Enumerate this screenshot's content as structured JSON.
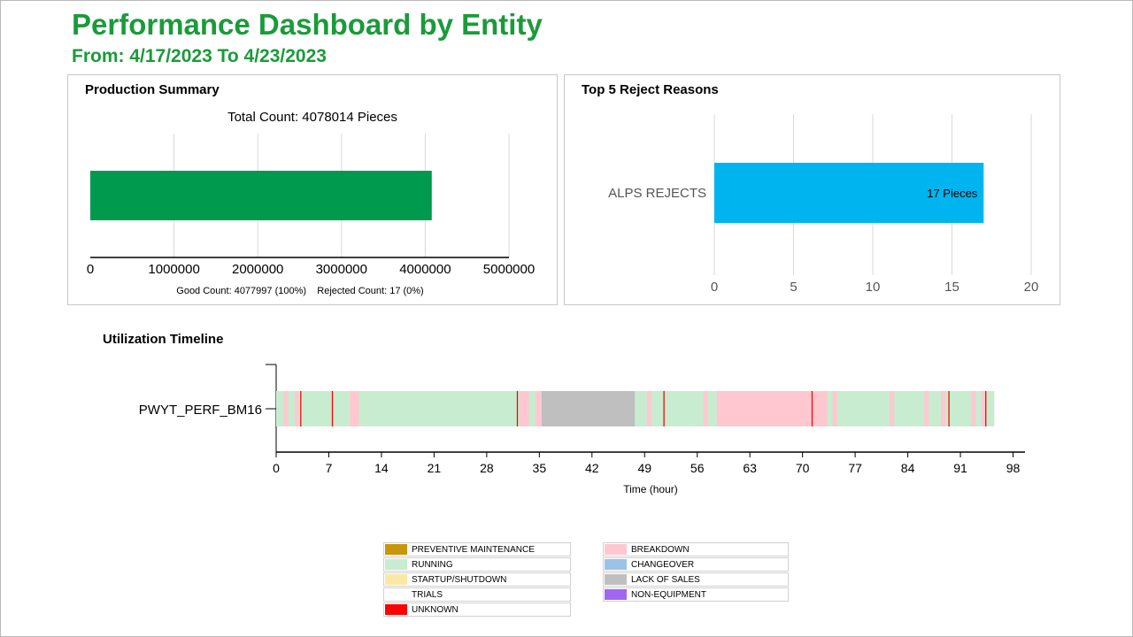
{
  "header": {
    "title": "Performance Dashboard by Entity",
    "subtitle": "From: 4/17/2023 To 4/23/2023"
  },
  "colors": {
    "title_green": "#1a9b3a",
    "production_bar": "#009a4e",
    "reject_bar": "#00b5ef",
    "running": "#c8ecd0",
    "breakdown": "#ffc8d0",
    "lack_of_sales": "#bfbfbf",
    "unknown": "#ff0000"
  },
  "production": {
    "panel_title": "Production Summary",
    "total_label": "Total Count: 4078014 Pieces",
    "footer": "Good Count: 4077997 (100%)    Rejected Count: 17 (0%)"
  },
  "rejects": {
    "panel_title": "Top 5 Reject Reasons"
  },
  "timeline": {
    "section_title": "Utilization Timeline",
    "entity": "PWYT_PERF_BM16",
    "xlabel": "Time (hour)"
  },
  "chart_data": [
    {
      "type": "bar",
      "orientation": "horizontal",
      "title": "Total Count: 4078014 Pieces",
      "categories": [
        ""
      ],
      "values": [
        4078014
      ],
      "xlim": [
        0,
        5000000
      ],
      "xticks": [
        "0",
        "1000000",
        "2000000",
        "3000000",
        "4000000",
        "5000000"
      ],
      "grid": true
    },
    {
      "type": "bar",
      "orientation": "horizontal",
      "categories": [
        "ALPS REJECTS"
      ],
      "values": [
        17
      ],
      "data_labels": [
        "17 Pieces"
      ],
      "xlim": [
        0,
        20
      ],
      "xticks": [
        "0",
        "5",
        "10",
        "15",
        "20"
      ],
      "grid": true
    },
    {
      "type": "bar",
      "subtype": "timeline",
      "category": "PWYT_PERF_BM16",
      "xlabel": "Time (hour)",
      "xlim": [
        0,
        98
      ],
      "xticks": [
        "0",
        "7",
        "14",
        "21",
        "28",
        "35",
        "42",
        "49",
        "56",
        "63",
        "70",
        "77",
        "84",
        "91",
        "98"
      ],
      "segments": [
        {
          "state": "RUNNING",
          "start": 0,
          "end": 95.5
        },
        {
          "state": "BREAKDOWN",
          "start": 1.0,
          "end": 1.6
        },
        {
          "state": "BREAKDOWN",
          "start": 2.5,
          "end": 3.0
        },
        {
          "state": "BREAKDOWN",
          "start": 9.8,
          "end": 11.0
        },
        {
          "state": "BREAKDOWN",
          "start": 32.3,
          "end": 33.6
        },
        {
          "state": "BREAKDOWN",
          "start": 34.5,
          "end": 35.3
        },
        {
          "state": "LACK OF SALES",
          "start": 35.3,
          "end": 47.7
        },
        {
          "state": "BREAKDOWN",
          "start": 49.3,
          "end": 49.9
        },
        {
          "state": "BREAKDOWN",
          "start": 56.8,
          "end": 57.4
        },
        {
          "state": "BREAKDOWN",
          "start": 58.6,
          "end": 73.3
        },
        {
          "state": "BREAKDOWN",
          "start": 74.0,
          "end": 74.6
        },
        {
          "state": "BREAKDOWN",
          "start": 81.6,
          "end": 82.2
        },
        {
          "state": "BREAKDOWN",
          "start": 86.2,
          "end": 86.8
        },
        {
          "state": "BREAKDOWN",
          "start": 88.4,
          "end": 89.0
        },
        {
          "state": "BREAKDOWN",
          "start": 92.4,
          "end": 93.0
        },
        {
          "state": "BREAKDOWN",
          "start": 93.8,
          "end": 94.4
        },
        {
          "state": "UNKNOWN",
          "start": 3.2,
          "end": 3.35
        },
        {
          "state": "UNKNOWN",
          "start": 7.4,
          "end": 7.55
        },
        {
          "state": "UNKNOWN",
          "start": 32.0,
          "end": 32.15
        },
        {
          "state": "UNKNOWN",
          "start": 51.5,
          "end": 51.65
        },
        {
          "state": "UNKNOWN",
          "start": 71.2,
          "end": 71.35
        },
        {
          "state": "UNKNOWN",
          "start": 89.4,
          "end": 89.55
        },
        {
          "state": "UNKNOWN",
          "start": 94.3,
          "end": 94.45
        }
      ]
    }
  ],
  "legend": [
    {
      "label": "PREVENTIVE MAINTENANCE",
      "color": "#c8960a"
    },
    {
      "label": "RUNNING",
      "color": "#c8ecd0"
    },
    {
      "label": "STARTUP/SHUTDOWN",
      "color": "#fbe8a6"
    },
    {
      "label": "TRIALS",
      "color": "#ffffff"
    },
    {
      "label": "UNKNOWN",
      "color": "#ff0000"
    },
    {
      "label": "BREAKDOWN",
      "color": "#ffc8d0"
    },
    {
      "label": "CHANGEOVER",
      "color": "#9cc3e5"
    },
    {
      "label": "LACK OF SALES",
      "color": "#bfbfbf"
    },
    {
      "label": "NON-EQUIPMENT",
      "color": "#a066f2"
    }
  ]
}
